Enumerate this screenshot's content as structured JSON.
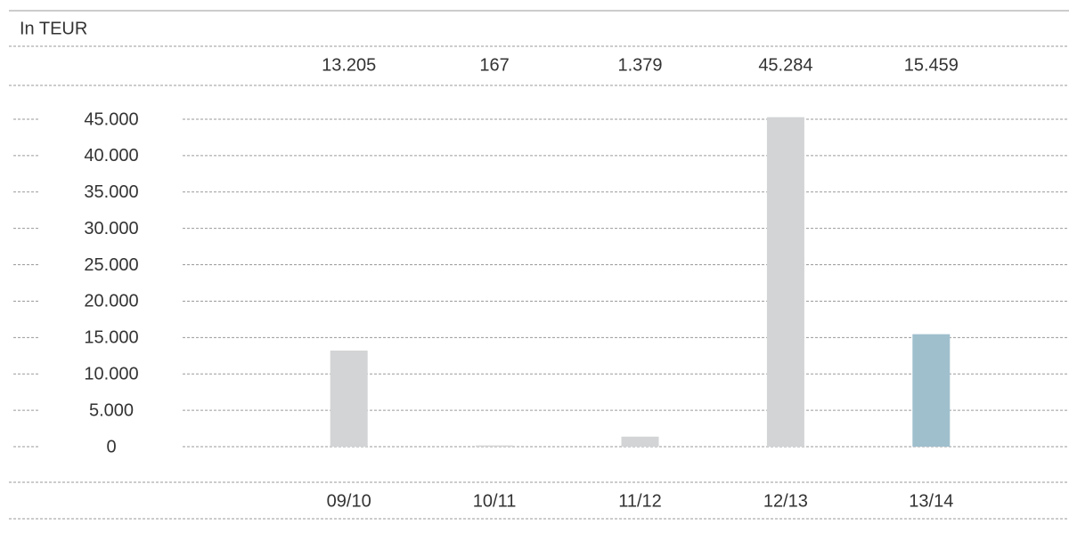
{
  "chart_data": {
    "type": "bar",
    "y_axis_label": "In TEUR",
    "categories": [
      "09/10",
      "10/11",
      "11/12",
      "12/13",
      "13/14"
    ],
    "values": [
      13205,
      167,
      1379,
      45284,
      15459
    ],
    "value_labels": [
      "13.205",
      "167",
      "1.379",
      "45.284",
      "15.459"
    ],
    "colors": [
      "#d3d4d5",
      "#d3d4d5",
      "#d3d4d5",
      "#d3d4d5",
      "#9fbfcd"
    ],
    "ylim": [
      0,
      45000
    ],
    "yticks": [
      {
        "value": 0,
        "label": "0"
      },
      {
        "value": 5000,
        "label": "5.000"
      },
      {
        "value": 10000,
        "label": "10.000"
      },
      {
        "value": 15000,
        "label": "15.000"
      },
      {
        "value": 20000,
        "label": "20.000"
      },
      {
        "value": 25000,
        "label": "25.000"
      },
      {
        "value": 30000,
        "label": "30.000"
      },
      {
        "value": 35000,
        "label": "35.000"
      },
      {
        "value": 40000,
        "label": "40.000"
      },
      {
        "value": 45000,
        "label": "45.000"
      }
    ],
    "grid": true
  }
}
